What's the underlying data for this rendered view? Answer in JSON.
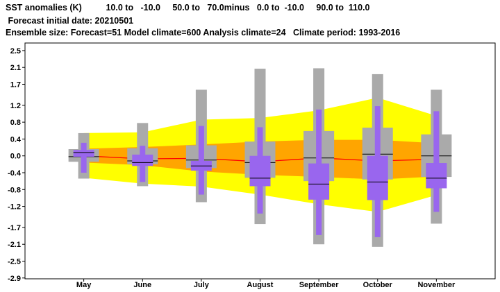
{
  "header": {
    "line1": "SST anomalies (K)          10.0 to   -10.0     50.0 to   70.0minus   0.0 to  -10.0     90.0 to  110.0",
    "line2": " Forecast initial date: 20210501",
    "line3": "Ensemble size: Forecast=51 Model climate=600 Analysis climate=24   Climate period: 1993-2016"
  },
  "chart_data": {
    "type": "box",
    "title": "SST anomalies (K)",
    "categories": [
      "May",
      "June",
      "July",
      "August",
      "September",
      "October",
      "November"
    ],
    "yticks": [
      2.5,
      2.1,
      1.7,
      1.2,
      0.8,
      0.4,
      0.0,
      -0.4,
      -0.8,
      -1.2,
      -1.7,
      -2.1,
      -2.5,
      -2.9
    ],
    "ylim": [
      -2.92,
      2.68
    ],
    "colors": {
      "climate_outer": "#ffff00",
      "climate_inner": "#ffa500",
      "climate_median": "#ff0000",
      "forecast": "#9966ee",
      "model_climate_box": "#aaaaaa",
      "median_line": "#000000"
    },
    "climate_band": {
      "outer_upper": [
        0.54,
        0.56,
        0.86,
        0.9,
        1.08,
        1.38,
        0.95
      ],
      "inner_upper": [
        0.17,
        0.21,
        0.27,
        0.34,
        0.38,
        0.38,
        0.3
      ],
      "median": [
        0.0,
        -0.07,
        -0.06,
        -0.14,
        -0.05,
        -0.12,
        -0.08
      ],
      "inner_lower": [
        -0.16,
        -0.22,
        -0.37,
        -0.45,
        -0.5,
        -0.56,
        -0.49
      ],
      "outer_lower": [
        -0.52,
        -0.66,
        -0.73,
        -0.92,
        -1.15,
        -1.33,
        -0.93
      ]
    },
    "model_climate": [
      {
        "month": "May",
        "min": -0.54,
        "p25": -0.14,
        "median": -0.02,
        "p75": 0.16,
        "max": 0.54
      },
      {
        "month": "June",
        "min": -0.72,
        "p25": -0.2,
        "median": -0.12,
        "p75": 0.18,
        "max": 0.78
      },
      {
        "month": "July",
        "min": -1.1,
        "p25": -0.29,
        "median": -0.1,
        "p75": 0.25,
        "max": 1.57
      },
      {
        "month": "August",
        "min": -1.62,
        "p25": -0.52,
        "median": -0.16,
        "p75": 0.34,
        "max": 2.07
      },
      {
        "month": "September",
        "min": -2.1,
        "p25": -0.6,
        "median": -0.05,
        "p75": 0.59,
        "max": 2.08
      },
      {
        "month": "October",
        "min": -2.16,
        "p25": -0.56,
        "median": 0.04,
        "p75": 0.67,
        "max": 1.94
      },
      {
        "month": "November",
        "min": -1.61,
        "p25": -0.5,
        "median": 0.0,
        "p75": 0.51,
        "max": 1.57
      }
    ],
    "forecast": [
      {
        "month": "May",
        "min": -0.4,
        "p25": -0.02,
        "median": 0.08,
        "p75": 0.14,
        "max": 0.31
      },
      {
        "month": "June",
        "min": -0.62,
        "p25": -0.24,
        "median": -0.16,
        "p75": 0.03,
        "max": 0.24
      },
      {
        "month": "July",
        "min": -0.92,
        "p25": -0.35,
        "median": -0.24,
        "p75": -0.12,
        "max": 0.71
      },
      {
        "month": "August",
        "min": -1.37,
        "p25": -0.72,
        "median": -0.53,
        "p75": 0.0,
        "max": 0.68
      },
      {
        "month": "September",
        "min": -1.88,
        "p25": -1.04,
        "median": -0.67,
        "p75": -0.18,
        "max": 1.1
      },
      {
        "month": "October",
        "min": -1.93,
        "p25": -1.05,
        "median": -0.62,
        "p75": 0.0,
        "max": 1.18
      },
      {
        "month": "November",
        "min": -1.33,
        "p25": -0.77,
        "median": -0.53,
        "p75": -0.17,
        "max": 1.06
      }
    ]
  }
}
